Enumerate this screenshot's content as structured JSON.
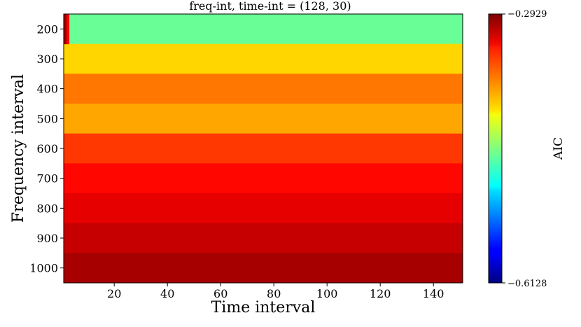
{
  "chart_data": {
    "type": "heatmap",
    "title": "freq-int, time-int = (128, 30)",
    "xlabel": "Time interval",
    "ylabel": "Frequency interval",
    "xlim": [
      1,
      151
    ],
    "x_ticks": [
      20,
      40,
      60,
      80,
      100,
      120,
      140
    ],
    "y_categories": [
      200,
      300,
      400,
      500,
      600,
      700,
      800,
      900,
      1000
    ],
    "colorbar": {
      "label": "AIC",
      "colormap": "jet",
      "min": -0.6128,
      "max": -0.2929,
      "min_label": "−0.6128",
      "max_label": "−0.2929"
    },
    "rows": [
      {
        "y": 200,
        "value": -0.46,
        "note_first_cols": [
          -0.3,
          -0.33
        ]
      },
      {
        "y": 300,
        "value": -0.4
      },
      {
        "y": 400,
        "value": -0.37
      },
      {
        "y": 500,
        "value": -0.385
      },
      {
        "y": 600,
        "value": -0.35
      },
      {
        "y": 700,
        "value": -0.335
      },
      {
        "y": 800,
        "value": -0.325
      },
      {
        "y": 900,
        "value": -0.315
      },
      {
        "y": 1000,
        "value": -0.305
      }
    ]
  }
}
